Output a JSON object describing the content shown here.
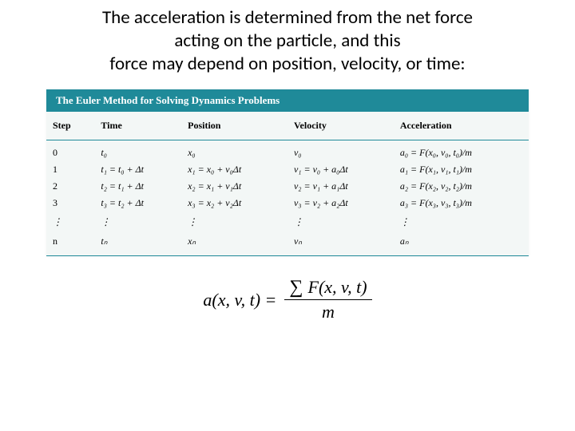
{
  "heading_line1": "The acceleration is determined from the net force",
  "heading_line2": "acting on the particle, and this",
  "heading_line3": "force may depend on position, velocity, or time:",
  "table": {
    "title": "The Euler Method for Solving Dynamics Problems",
    "title_bg": "#1f8a99",
    "header_border_color": "#1f8a99",
    "row_bg": "#f3f7f6",
    "columns": [
      "Step",
      "Time",
      "Position",
      "Velocity",
      "Acceleration"
    ],
    "col_widths_pct": [
      10,
      18,
      22,
      22,
      28
    ],
    "rows": [
      {
        "step": "0",
        "time": "t₀",
        "position": "x₀",
        "velocity": "v₀",
        "acceleration": "a₀ = F(x₀, v₀, t₀)/m"
      },
      {
        "step": "1",
        "time": "t₁ = t₀ + Δt",
        "position": "x₁ = x₀ + v₀Δt",
        "velocity": "v₁ = v₀ + a₀Δt",
        "acceleration": "a₁ = F(x₁, v₁, t₁)/m"
      },
      {
        "step": "2",
        "time": "t₂ = t₁ + Δt",
        "position": "x₂ = x₁ + v₁Δt",
        "velocity": "v₂ = v₁ + a₁Δt",
        "acceleration": "a₂ = F(x₂, v₂, t₂)/m"
      },
      {
        "step": "3",
        "time": "t₃ = t₂ + Δt",
        "position": "x₃ = x₂ + v₂Δt",
        "velocity": "v₃ = v₂ + a₂Δt",
        "acceleration": "a₃ = F(x₃, v₃, t₃)/m"
      }
    ],
    "ellipsis": "⋮",
    "final_row": {
      "step": "n",
      "time": "tₙ",
      "position": "xₙ",
      "velocity": "vₙ",
      "acceleration": "aₙ"
    }
  },
  "formula": {
    "lhs": "a(x, v, t)  =",
    "sigma": "∑",
    "num_rest": "F(x, v, t)",
    "den": "m"
  }
}
